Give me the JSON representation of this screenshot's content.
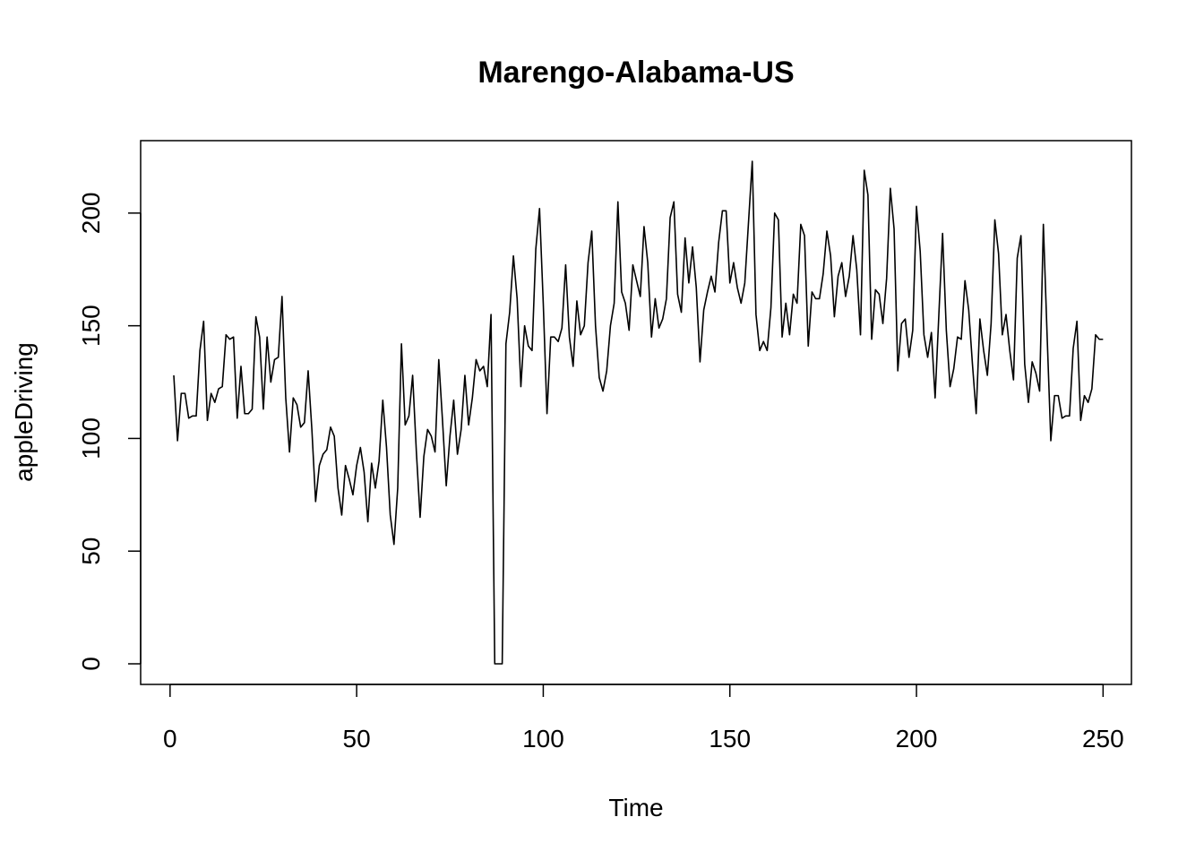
{
  "chart_data": {
    "type": "line",
    "title": "Marengo-Alabama-US",
    "xlabel": "Time",
    "ylabel": "appleDriving",
    "xlim": [
      1,
      248
    ],
    "ylim": [
      0,
      223
    ],
    "xticks": [
      0,
      50,
      100,
      150,
      200,
      250
    ],
    "yticks": [
      0,
      50,
      100,
      150,
      200
    ],
    "grid": false,
    "series": [
      {
        "color": "#000000",
        "x_start": 1,
        "values": [
          128,
          99,
          120,
          120,
          109,
          110,
          110,
          139,
          152,
          108,
          120,
          116,
          122,
          123,
          146,
          144,
          145,
          109,
          132,
          111,
          111,
          113,
          154,
          145,
          113,
          145,
          125,
          135,
          136,
          163,
          118,
          94,
          118,
          115,
          105,
          107,
          130,
          104,
          72,
          88,
          93,
          95,
          105,
          101,
          78,
          66,
          88,
          82,
          75,
          88,
          96,
          85,
          63,
          89,
          78,
          90,
          117,
          96,
          66,
          53,
          78,
          142,
          106,
          110,
          128,
          94,
          65,
          92,
          104,
          101,
          94,
          135,
          108,
          79,
          101,
          117,
          93,
          104,
          128,
          106,
          118,
          135,
          130,
          132,
          123,
          155,
          0,
          0,
          0,
          142,
          156,
          181,
          162,
          123,
          150,
          141,
          139,
          184,
          202,
          160,
          111,
          145,
          145,
          143,
          149,
          177,
          145,
          132,
          161,
          146,
          150,
          178,
          192,
          150,
          127,
          121,
          130,
          150,
          160,
          205,
          165,
          160,
          148,
          177,
          170,
          163,
          194,
          178,
          145,
          162,
          149,
          153,
          162,
          198,
          205,
          164,
          156,
          189,
          169,
          185,
          167,
          134,
          157,
          165,
          172,
          165,
          187,
          201,
          201,
          169,
          178,
          167,
          160,
          169,
          196,
          223,
          155,
          139,
          143,
          139,
          158,
          200,
          197,
          145,
          160,
          146,
          164,
          160,
          195,
          190,
          141,
          165,
          162,
          162,
          173,
          192,
          181,
          154,
          172,
          178,
          163,
          172,
          190,
          175,
          146,
          219,
          208,
          144,
          166,
          164,
          151,
          171,
          211,
          193,
          130,
          151,
          153,
          136,
          148,
          203,
          183,
          146,
          136,
          147,
          118,
          155,
          191,
          148,
          123,
          131,
          145,
          144,
          170,
          157,
          133,
          111,
          153,
          139,
          128,
          151,
          197,
          182,
          146,
          155,
          139,
          126,
          180,
          190,
          133,
          116,
          134,
          129,
          121,
          195,
          146,
          99,
          119,
          119,
          109,
          110,
          110,
          140,
          152,
          108,
          119,
          116,
          122,
          146,
          144,
          144
        ]
      }
    ]
  }
}
